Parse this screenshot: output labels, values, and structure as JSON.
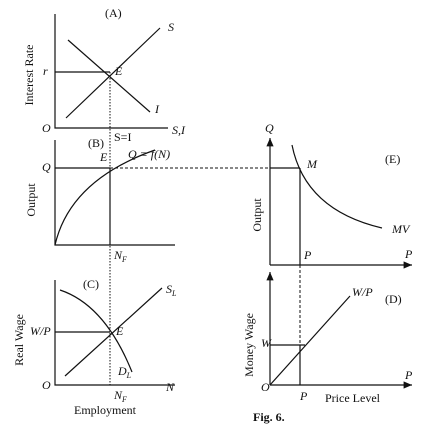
{
  "panel_a": {
    "tag": "(A)",
    "y_axis": "Interest Rate",
    "x_axis": "S,I",
    "origin": "O",
    "rate": "r",
    "supply": "S",
    "invest": "I",
    "eq": "E",
    "equality": "S=I"
  },
  "panel_b": {
    "tag": "(B)",
    "y_axis": "Output",
    "q": "Q",
    "eq": "E",
    "function": "Q = f(N)",
    "nf": {
      "main": "N",
      "sub": "F"
    }
  },
  "panel_c": {
    "tag": "(C)",
    "y_axis": "Real Wage",
    "x_axis": "Employment",
    "origin": "O",
    "wp": "W/P",
    "eq": "E",
    "n": "N",
    "sl": {
      "main": "S",
      "sub": "L"
    },
    "dl": {
      "main": "D",
      "sub": "L"
    },
    "nf": {
      "main": "N",
      "sub": "F"
    }
  },
  "panel_e": {
    "tag": "(E)",
    "y_axis": "Output",
    "q": "Q",
    "m": "M",
    "mv": "MV",
    "p": "P",
    "p_axis": "P"
  },
  "panel_d": {
    "tag": "(D)",
    "y_axis": "Money Wage",
    "w": "W",
    "wp": "W/P",
    "origin": "O",
    "p": "P",
    "x_axis": "Price Level",
    "p_axis": "P"
  },
  "caption": "Fig. 6."
}
